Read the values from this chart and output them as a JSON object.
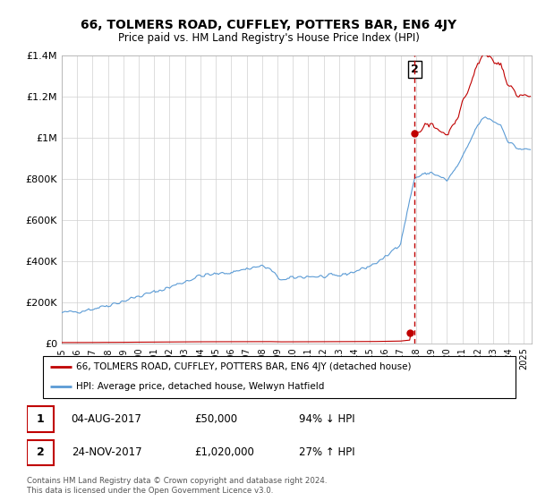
{
  "title": "66, TOLMERS ROAD, CUFFLEY, POTTERS BAR, EN6 4JY",
  "subtitle": "Price paid vs. HM Land Registry's House Price Index (HPI)",
  "ylim": [
    0,
    1400000
  ],
  "yticks": [
    0,
    200000,
    400000,
    600000,
    800000,
    1000000,
    1200000,
    1400000
  ],
  "ytick_labels": [
    "£0",
    "£200K",
    "£400K",
    "£600K",
    "£800K",
    "£1M",
    "£1.2M",
    "£1.4M"
  ],
  "t1_x": 2017.59,
  "t1_y": 50000,
  "t2_x": 2017.9,
  "t2_y": 1020000,
  "transaction1": {
    "date": "04-AUG-2017",
    "price": "£50,000",
    "pct": "94% ↓ HPI"
  },
  "transaction2": {
    "date": "24-NOV-2017",
    "price": "£1,020,000",
    "pct": "27% ↑ HPI"
  },
  "vline_x": 2017.9,
  "hpi_color": "#5b9bd5",
  "price_color": "#c00000",
  "vline_color": "#c00000",
  "legend_house_label": "66, TOLMERS ROAD, CUFFLEY, POTTERS BAR, EN6 4JY (detached house)",
  "legend_hpi_label": "HPI: Average price, detached house, Welwyn Hatfield",
  "footnote": "Contains HM Land Registry data © Crown copyright and database right 2024.\nThis data is licensed under the Open Government Licence v3.0.",
  "xlim": [
    1995.0,
    2025.5
  ],
  "xticks": [
    1995,
    1996,
    1997,
    1998,
    1999,
    2000,
    2001,
    2002,
    2003,
    2004,
    2005,
    2006,
    2007,
    2008,
    2009,
    2010,
    2011,
    2012,
    2013,
    2014,
    2015,
    2016,
    2017,
    2018,
    2019,
    2020,
    2021,
    2022,
    2023,
    2024,
    2025
  ],
  "hpi_base_at_t2": 803000,
  "hpi_base_year": 1995,
  "hpi_base_value": 147000
}
